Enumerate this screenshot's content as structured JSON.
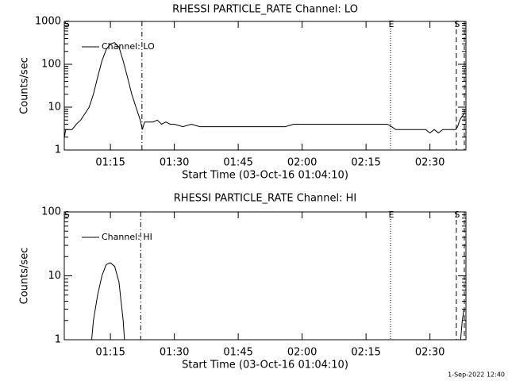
{
  "chart_data": [
    {
      "type": "line",
      "title": "RHESSI PARTICLE_RATE Channel: LO",
      "xlabel": "Start Time (03-Oct-16 01:04:10)",
      "ylabel": "Counts/sec",
      "log_y": true,
      "legend": "upper left",
      "xlim": [
        64.17,
        158.45
      ],
      "ylim": [
        1,
        1000
      ],
      "xticks": [
        {
          "value": 75,
          "label": "01:15"
        },
        {
          "value": 90,
          "label": "01:30"
        },
        {
          "value": 105,
          "label": "01:45"
        },
        {
          "value": 120,
          "label": "02:00"
        },
        {
          "value": 135,
          "label": "02:15"
        },
        {
          "value": 150,
          "label": "02:30"
        }
      ],
      "yticks": [
        1,
        10,
        100,
        1000
      ],
      "markers": [
        {
          "x": 82.4,
          "style": "dashdot"
        },
        {
          "x": 140.75,
          "style": "dotted",
          "label": "E"
        },
        {
          "x": 156.2,
          "style": "dashed",
          "label": "S"
        },
        {
          "x": 158.07,
          "style": "dashed"
        },
        {
          "x": 64.6,
          "style": "none",
          "label": "S"
        }
      ],
      "x": [
        64.2,
        64.5,
        65,
        66,
        67,
        68,
        69,
        70,
        71,
        72,
        73,
        74,
        75,
        76,
        77,
        78,
        79,
        80,
        81,
        82,
        82.5,
        83,
        84,
        85,
        86,
        87,
        88,
        89,
        90,
        92,
        94,
        96,
        98,
        100,
        102,
        104,
        106,
        108,
        110,
        112,
        114,
        116,
        118,
        120,
        122,
        124,
        126,
        128,
        130,
        132,
        134,
        136,
        138,
        140,
        141,
        142,
        143,
        144,
        145,
        146,
        147,
        148,
        149,
        150,
        151,
        152,
        153,
        154,
        155,
        156,
        156.5,
        157,
        157.5,
        158
      ],
      "series": [
        {
          "name": "Channel: LO",
          "color": "#000000",
          "values": [
            2,
            3,
            3,
            3,
            4,
            5,
            7,
            10,
            20,
            50,
            120,
            220,
            300,
            320,
            250,
            120,
            50,
            20,
            10,
            5,
            3,
            4.5,
            4.5,
            4.5,
            5,
            4,
            4.5,
            4,
            4,
            3.5,
            4,
            3.5,
            3.5,
            3.5,
            3.5,
            3.5,
            3.5,
            3.5,
            3.5,
            3.5,
            3.5,
            3.5,
            4,
            4,
            4,
            4,
            4,
            4,
            4,
            4,
            4,
            4,
            4,
            4,
            3.5,
            3,
            3,
            3,
            3,
            3,
            3,
            3,
            3,
            2.5,
            3,
            2.5,
            3,
            3,
            3,
            3,
            3.5,
            5,
            6,
            7
          ]
        }
      ]
    },
    {
      "type": "line",
      "title": "RHESSI PARTICLE_RATE Channel: HI",
      "xlabel": "Start Time (03-Oct-16 01:04:10)",
      "ylabel": "Counts/sec",
      "log_y": true,
      "legend": "upper left",
      "xlim": [
        64.17,
        158.45
      ],
      "ylim": [
        1,
        100
      ],
      "xticks": [
        {
          "value": 75,
          "label": "01:15"
        },
        {
          "value": 90,
          "label": "01:30"
        },
        {
          "value": 105,
          "label": "01:45"
        },
        {
          "value": 120,
          "label": "02:00"
        },
        {
          "value": 135,
          "label": "02:15"
        },
        {
          "value": 150,
          "label": "02:30"
        }
      ],
      "yticks": [
        1,
        10,
        100
      ],
      "markers": [
        {
          "x": 82.1,
          "style": "dashdot"
        },
        {
          "x": 140.75,
          "style": "dotted",
          "label": "E"
        },
        {
          "x": 156.2,
          "style": "dashed",
          "label": "S"
        },
        {
          "x": 158.07,
          "style": "dashed"
        },
        {
          "x": 64.6,
          "style": "none",
          "label": "S"
        }
      ],
      "x": [
        70.6,
        71,
        72,
        73,
        74,
        75,
        76,
        77,
        77.5,
        78,
        78.3,
        120,
        157.2,
        157.6,
        158
      ],
      "series": [
        {
          "name": "Channel: HI",
          "color": "#000000",
          "values": [
            1,
            2,
            5,
            10,
            15,
            16,
            14,
            8,
            4,
            2,
            1,
            null,
            1,
            2,
            3
          ]
        }
      ]
    }
  ],
  "footer": "1-Sep-2022 12:40"
}
